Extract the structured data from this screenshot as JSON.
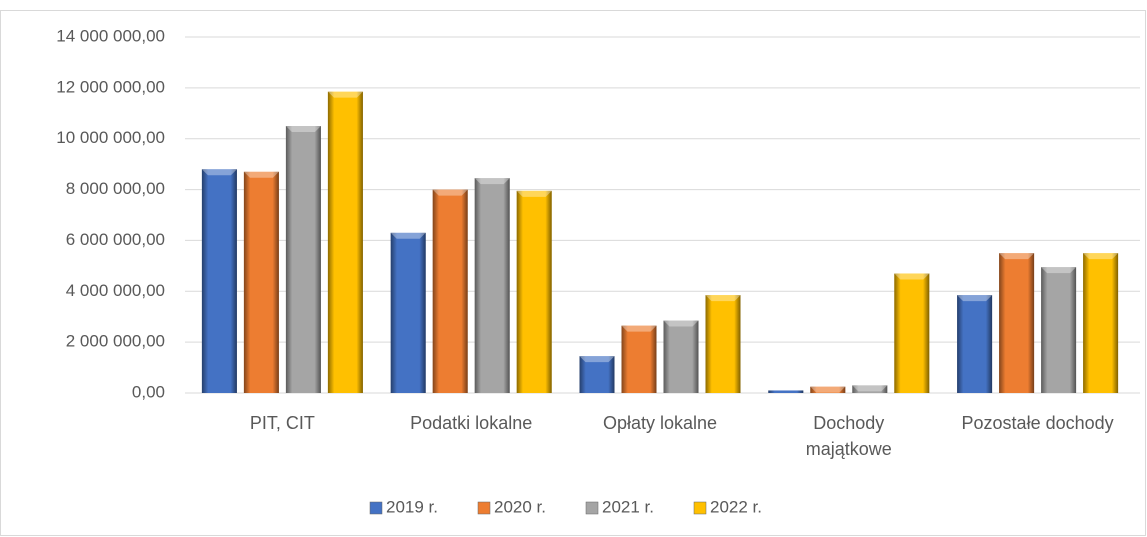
{
  "chart_data": {
    "type": "bar",
    "categories": [
      "PIT, CIT",
      "Podatki lokalne",
      "Opłaty lokalne",
      "Dochody majątkowe",
      "Pozostałe dochody"
    ],
    "series": [
      {
        "name": "2019 r.",
        "color": "#4472c4",
        "values": [
          8800000,
          6300000,
          1450000,
          100000,
          3850000
        ]
      },
      {
        "name": "2020 r.",
        "color": "#ed7d31",
        "values": [
          8700000,
          8000000,
          2650000,
          250000,
          5500000
        ]
      },
      {
        "name": "2021 r.",
        "color": "#a5a5a5",
        "values": [
          10500000,
          8450000,
          2850000,
          300000,
          4950000
        ]
      },
      {
        "name": "2022 r.",
        "color": "#ffc000",
        "values": [
          11850000,
          7950000,
          3850000,
          4700000,
          5500000
        ]
      }
    ],
    "ylim": [
      0,
      14000000
    ],
    "yticks": [
      {
        "value": 0,
        "label": "0,00"
      },
      {
        "value": 2000000,
        "label": "2 000 000,00"
      },
      {
        "value": 4000000,
        "label": "4 000 000,00"
      },
      {
        "value": 6000000,
        "label": "6 000 000,00"
      },
      {
        "value": 8000000,
        "label": "8 000 000,00"
      },
      {
        "value": 10000000,
        "label": "10 000 000,00"
      },
      {
        "value": 12000000,
        "label": "12 000 000,00"
      },
      {
        "value": 14000000,
        "label": "14 000 000,00"
      }
    ],
    "grid": true,
    "legend": "bottom"
  }
}
